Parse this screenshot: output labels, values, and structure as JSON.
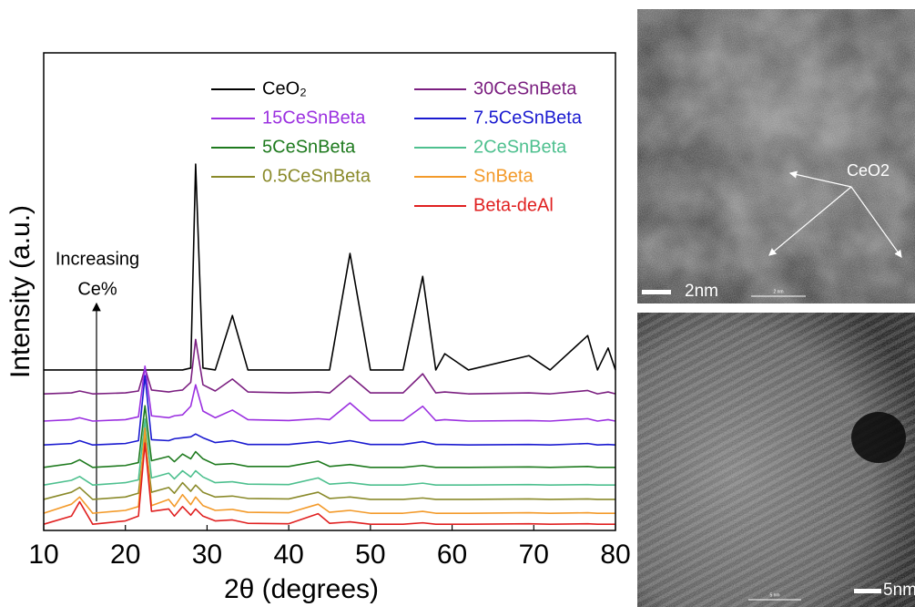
{
  "chart_data": {
    "type": "line",
    "xlabel": "2θ (degrees)",
    "ylabel": "Intensity (a.u.)",
    "annotation": [
      "Increasing",
      "Ce%"
    ],
    "xlim": [
      10,
      80
    ],
    "xticks": [
      10,
      20,
      30,
      40,
      50,
      60,
      70,
      80
    ],
    "ylim": [
      0,
      100
    ],
    "x": [
      10,
      13.4,
      14.4,
      16,
      20,
      21.6,
      22.4,
      23.2,
      25.3,
      26,
      27,
      28,
      28.6,
      29.5,
      31,
      33.1,
      35,
      40,
      43.6,
      45,
      47.5,
      50,
      54,
      56.4,
      58,
      59.1,
      62,
      69.4,
      72,
      76.6,
      77.8,
      79.1,
      80
    ],
    "series": [
      {
        "name": "CeO₂",
        "color": "#000000",
        "values": [
          33.6,
          33.6,
          33.6,
          33.6,
          33.6,
          33.6,
          33.6,
          33.6,
          33.6,
          33.6,
          33.6,
          34,
          76.7,
          34,
          33.6,
          45,
          33.6,
          33.6,
          33.6,
          33.6,
          58,
          33.6,
          33.6,
          53.2,
          33.6,
          37,
          33.6,
          36.6,
          33.6,
          40.8,
          33.6,
          38.2,
          33.6
        ]
      },
      {
        "name": "30CeSnBeta",
        "color": "#7b1f80",
        "values": [
          28.6,
          28.8,
          29.2,
          28.6,
          28.8,
          29.2,
          34,
          29.4,
          29,
          29.2,
          29.4,
          31,
          40,
          30.5,
          29.2,
          31.7,
          29,
          28.8,
          29,
          28.8,
          32.4,
          28.8,
          28.8,
          32.8,
          28.8,
          29,
          28.6,
          28.8,
          28.6,
          29.3,
          28.6,
          29,
          28.6
        ]
      },
      {
        "name": "15CeSnBeta",
        "color": "#9b30e0",
        "values": [
          22.9,
          23.2,
          23.6,
          22.9,
          23.2,
          23.8,
          34.4,
          24,
          23.6,
          24,
          24.2,
          26,
          30.5,
          25,
          23.6,
          25.2,
          23.2,
          23,
          23.4,
          23.2,
          26.7,
          23,
          23,
          26,
          23,
          23.2,
          22.9,
          23,
          22.9,
          23.4,
          22.9,
          23.2,
          22.9
        ]
      },
      {
        "name": "7.5CeSnBeta",
        "color": "#1a1ad0",
        "values": [
          17.9,
          18.2,
          18.8,
          17.9,
          18.2,
          18.8,
          32.4,
          19,
          18.8,
          19.2,
          19.4,
          19.6,
          20.2,
          19.4,
          18.4,
          18.8,
          18,
          18,
          18.6,
          18.2,
          18.8,
          18,
          18,
          18.6,
          18,
          18,
          17.9,
          18,
          17.9,
          18.2,
          17.9,
          18,
          17.9
        ]
      },
      {
        "name": "5CeSnBeta",
        "color": "#1e7a1e",
        "values": [
          13.2,
          14,
          14.8,
          13.2,
          13.6,
          14.2,
          26.1,
          14.6,
          15.5,
          14.4,
          16,
          15,
          16.5,
          15,
          13.8,
          14,
          13.4,
          13.4,
          14.5,
          13.4,
          13.8,
          13.2,
          13.2,
          13.6,
          13.2,
          13.2,
          13.2,
          13.3,
          13.2,
          13.4,
          13.2,
          13.2,
          13.2
        ]
      },
      {
        "name": "2CeSnBeta",
        "color": "#4ec08f",
        "values": [
          9.5,
          10.5,
          11.3,
          9.5,
          10,
          10.6,
          23.3,
          11,
          12,
          10.8,
          12.5,
          11.2,
          12.5,
          11.2,
          10,
          10.2,
          9.7,
          9.6,
          11,
          9.7,
          10,
          9.5,
          9.5,
          9.9,
          9.5,
          9.5,
          9.5,
          9.6,
          9.5,
          9.6,
          9.5,
          9.5,
          9.5
        ]
      },
      {
        "name": "0.5CeSnBeta",
        "color": "#8a8a2a",
        "values": [
          6.5,
          8,
          9,
          6.5,
          7,
          7.8,
          19.5,
          8,
          9,
          7.8,
          10,
          8.2,
          9.5,
          8,
          7,
          7.2,
          6.7,
          6.6,
          8,
          6.7,
          7,
          6.5,
          6.5,
          6.8,
          6.5,
          6.5,
          6.5,
          6.6,
          6.5,
          6.6,
          6.5,
          6.5,
          6.5
        ]
      },
      {
        "name": "SnBeta",
        "color": "#f39a2a",
        "values": [
          3.6,
          5.5,
          7,
          3.6,
          4.2,
          5,
          21.4,
          5.2,
          6.5,
          5,
          7.5,
          5.4,
          7,
          5.2,
          4.2,
          4.4,
          3.8,
          3.7,
          5.5,
          3.8,
          4.2,
          3.6,
          3.6,
          4,
          3.6,
          3.6,
          3.6,
          3.7,
          3.6,
          3.7,
          3.6,
          3.6,
          3.6
        ]
      },
      {
        "name": "Beta-deAl",
        "color": "#e02020",
        "values": [
          1.3,
          3,
          6,
          1.3,
          2,
          3,
          18.3,
          4,
          4.5,
          3,
          5,
          3.2,
          4.5,
          3,
          2,
          2.2,
          1.5,
          1.4,
          3.5,
          1.5,
          1.8,
          1.3,
          1.3,
          1.6,
          1.3,
          1.3,
          1.3,
          1.4,
          1.3,
          1.4,
          1.3,
          1.3,
          1.3
        ]
      }
    ]
  },
  "images": [
    {
      "label": "CeO2",
      "scale_bar": "2nm",
      "inner_scale": "2 nm"
    },
    {
      "scale_bar": "5nm",
      "inner_scale": "5 nm"
    }
  ]
}
